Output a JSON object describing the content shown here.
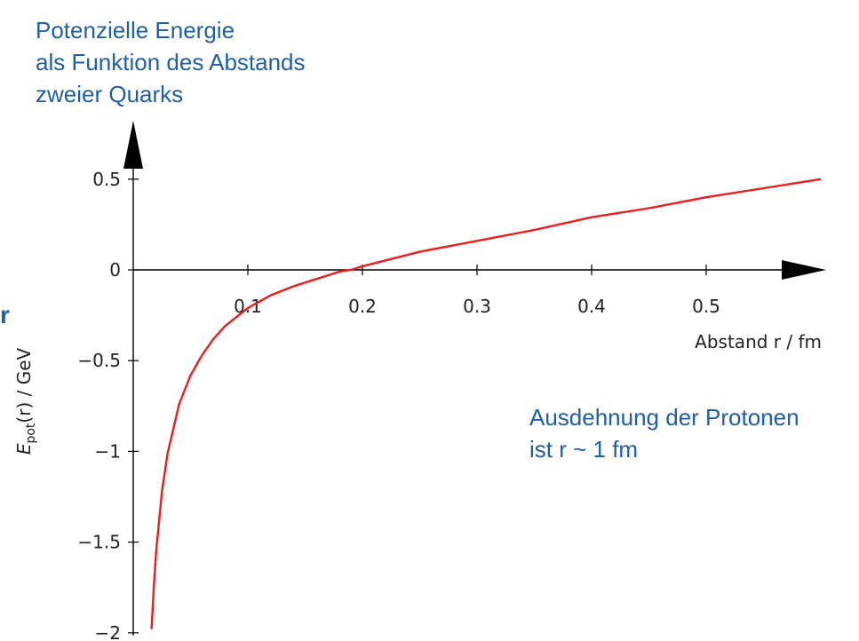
{
  "header": {
    "title_lines": [
      "Potenzielle Energie",
      "als Funktion des Abstands",
      "zweier Quarks"
    ]
  },
  "annotation": {
    "lines": [
      "Ausdehnung der Protonen",
      "ist r ~ 1 fm"
    ]
  },
  "edge_mark": "r",
  "colors": {
    "accent_text": "#1f5fa8",
    "curve": "#ee1c1c",
    "axes": "#000000"
  },
  "chart_data": {
    "type": "line",
    "title": "",
    "xlabel": "Abstand r / fm",
    "ylabel": "E_pot(r) / GeV",
    "ylabel_main": "E",
    "ylabel_sub": "pot",
    "ylabel_rest": "(r) / GeV",
    "xlim": [
      0,
      0.6
    ],
    "ylim": [
      -2,
      0.5
    ],
    "x_ticks": [
      0.1,
      0.2,
      0.3,
      0.4,
      0.5
    ],
    "x_tick_labels": [
      "0.1",
      "0.2",
      "0.3",
      "0.4",
      "0.5"
    ],
    "y_ticks": [
      0.5,
      0,
      -0.5,
      -1,
      -1.5,
      -2
    ],
    "y_tick_labels": [
      "0.5",
      "0",
      "−0.5",
      "−1",
      "−1.5",
      "−2"
    ],
    "grid": false,
    "legend": "none",
    "series": [
      {
        "x": [
          0.016,
          0.018,
          0.02,
          0.025,
          0.03,
          0.04,
          0.05,
          0.06,
          0.07,
          0.08,
          0.09,
          0.1,
          0.12,
          0.14,
          0.16,
          0.18,
          0.19,
          0.2,
          0.25,
          0.3,
          0.35,
          0.4,
          0.45,
          0.5,
          0.55,
          0.6
        ],
        "y": [
          -1.98,
          -1.74,
          -1.55,
          -1.22,
          -1.01,
          -0.74,
          -0.58,
          -0.47,
          -0.38,
          -0.31,
          -0.26,
          -0.21,
          -0.14,
          -0.09,
          -0.05,
          -0.01,
          0.0,
          0.02,
          0.1,
          0.16,
          0.22,
          0.29,
          0.34,
          0.4,
          0.45,
          0.5
        ]
      }
    ]
  }
}
